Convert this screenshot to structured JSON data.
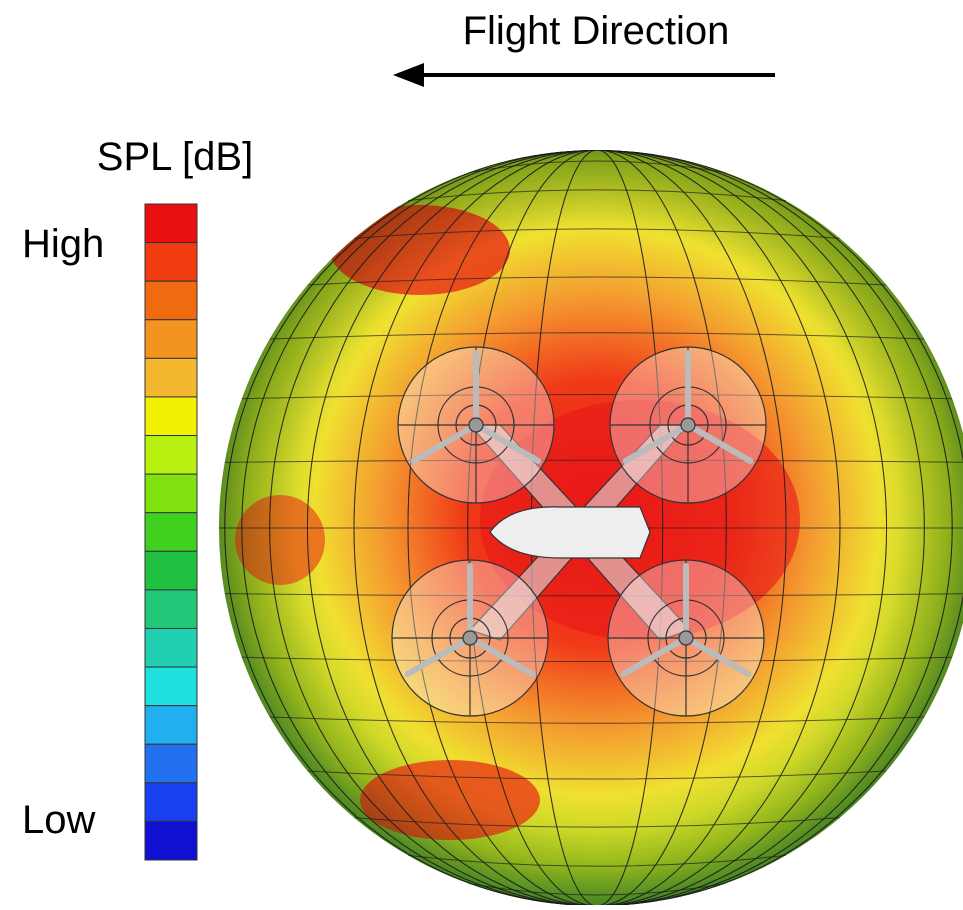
{
  "header": {
    "title": "Flight Direction"
  },
  "colorbar": {
    "title": "SPL [dB]",
    "high_label": "High",
    "low_label": "Low"
  }
}
